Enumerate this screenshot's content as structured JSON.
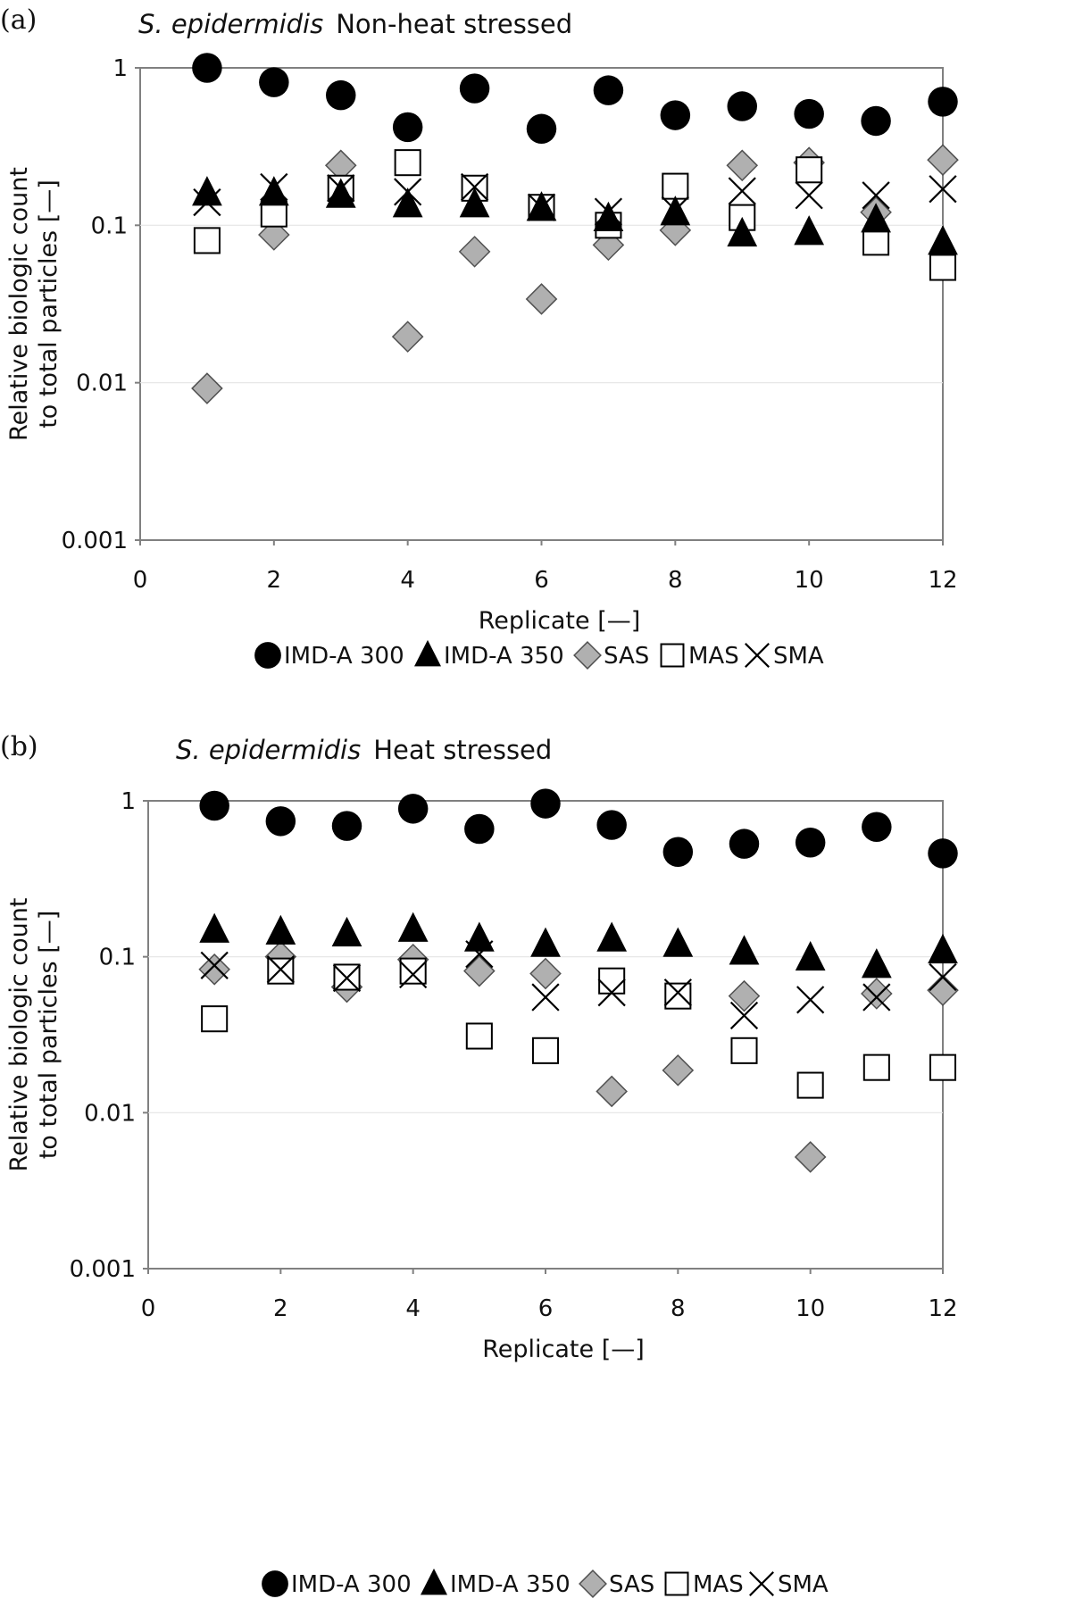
{
  "colors": {
    "circle": "#000000",
    "triangle": "#000000",
    "diamond": "#b0b0b0",
    "square": "#ffffff",
    "cross": "#000000",
    "grid": "#e4e4e4",
    "frame": "#808080"
  },
  "chart_data": [
    {
      "panel_label": "(a)",
      "title_italic": "S. epidermidis",
      "title_rest": "Non-heat stressed",
      "type": "scatter",
      "xlabel": "Replicate [—]",
      "ylabel_line1": "Relative biologic count",
      "ylabel_line2": "to total particles [—]",
      "xlim": [
        0,
        12
      ],
      "ylim": [
        0.001,
        1
      ],
      "yscale": "log",
      "grid": "horizontal",
      "legend_position": "bottom",
      "x_ticks": [
        "0",
        "2",
        "4",
        "6",
        "8",
        "10",
        "12"
      ],
      "y_ticks": [
        "0.001",
        "0.01",
        "0.1",
        "1"
      ],
      "x": [
        1,
        2,
        3,
        4,
        5,
        6,
        7,
        8,
        9,
        10,
        11,
        12
      ],
      "series": [
        {
          "name": "IMD-A 300",
          "marker": "circle",
          "values": [
            1.0,
            0.81,
            0.67,
            0.42,
            0.74,
            0.41,
            0.72,
            0.5,
            0.57,
            0.51,
            0.46,
            0.61
          ]
        },
        {
          "name": "IMD-A 350",
          "marker": "triangle",
          "values": [
            0.16,
            0.16,
            0.155,
            0.135,
            0.135,
            0.128,
            0.11,
            0.12,
            0.088,
            0.09,
            0.108,
            0.078
          ]
        },
        {
          "name": "SAS",
          "marker": "diamond",
          "values": [
            0.0092,
            0.087,
            0.24,
            0.0196,
            0.068,
            0.034,
            0.075,
            0.093,
            0.24,
            0.25,
            0.121,
            0.26
          ]
        },
        {
          "name": "MAS",
          "marker": "square",
          "values": [
            0.08,
            0.118,
            0.172,
            0.25,
            0.172,
            0.13,
            0.1,
            0.177,
            0.112,
            0.225,
            0.078,
            0.054
          ]
        },
        {
          "name": "SMA",
          "marker": "cross",
          "values": [
            0.14,
            0.175,
            0.172,
            0.163,
            0.175,
            0.13,
            0.122,
            0.125,
            0.165,
            0.155,
            0.155,
            0.17
          ]
        }
      ]
    },
    {
      "panel_label": "(b)",
      "title_italic": "S. epidermidis",
      "title_rest": "Heat stressed",
      "type": "scatter",
      "xlabel": "Replicate [—]",
      "ylabel_line1": "Relative biologic count",
      "ylabel_line2": "to total particles [—]",
      "xlim": [
        0,
        12
      ],
      "ylim": [
        0.001,
        1
      ],
      "yscale": "log",
      "grid": "horizontal",
      "legend_position": "bottom",
      "x_ticks": [
        "0",
        "2",
        "4",
        "6",
        "8",
        "10",
        "12"
      ],
      "y_ticks": [
        "0.001",
        "0.01",
        "0.1",
        "1"
      ],
      "x": [
        1,
        2,
        3,
        4,
        5,
        6,
        7,
        8,
        9,
        10,
        11,
        12
      ],
      "series": [
        {
          "name": "IMD-A 300",
          "marker": "circle",
          "values": [
            0.93,
            0.74,
            0.69,
            0.89,
            0.66,
            0.96,
            0.7,
            0.47,
            0.53,
            0.54,
            0.68,
            0.46
          ]
        },
        {
          "name": "IMD-A 350",
          "marker": "triangle",
          "values": [
            0.148,
            0.144,
            0.14,
            0.15,
            0.13,
            0.12,
            0.13,
            0.12,
            0.107,
            0.098,
            0.088,
            0.109
          ]
        },
        {
          "name": "SAS",
          "marker": "diamond",
          "values": [
            0.083,
            0.1,
            0.064,
            0.096,
            0.081,
            0.078,
            0.0137,
            0.0187,
            0.056,
            0.0052,
            0.058,
            0.061
          ]
        },
        {
          "name": "MAS",
          "marker": "square",
          "values": [
            0.04,
            0.081,
            0.074,
            0.081,
            0.031,
            0.025,
            0.07,
            0.056,
            0.025,
            0.015,
            0.0195,
            0.0195
          ]
        },
        {
          "name": "SMA",
          "marker": "cross",
          "values": [
            0.088,
            0.083,
            0.073,
            0.077,
            0.104,
            0.055,
            0.059,
            0.059,
            0.042,
            0.053,
            0.055,
            0.074
          ]
        }
      ]
    }
  ]
}
